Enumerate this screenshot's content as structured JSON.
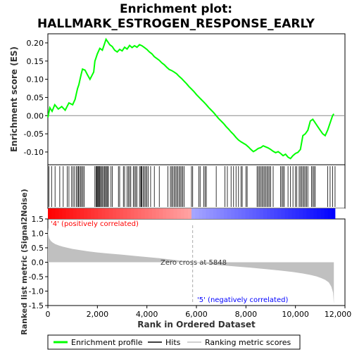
{
  "chart_data": {
    "type": "line",
    "title_line1": "Enrichment plot:",
    "title_line2": "HALLMARK_ESTROGEN_RESPONSE_EARLY",
    "top_panel": {
      "ylabel": "Enrichment score (ES)",
      "ylim": [
        -0.135,
        0.225
      ],
      "yticks": [
        "0.20",
        "0.15",
        "0.10",
        "0.05",
        "0.00",
        "-0.05",
        "-0.10"
      ],
      "ytick_values": [
        0.2,
        0.15,
        0.1,
        0.05,
        0.0,
        -0.05,
        -0.1
      ],
      "line_color": "#00ff00",
      "series": [
        {
          "x": [
            0,
            80,
            170,
            280,
            420,
            560,
            700,
            850,
            1000,
            1100,
            1150,
            1200,
            1250,
            1300,
            1350,
            1400,
            1500,
            1600,
            1700,
            1850,
            1900,
            1950,
            2000,
            2100,
            2200,
            2300,
            2350,
            2400,
            2500,
            2600,
            2700,
            2800,
            2900,
            3000,
            3100,
            3200,
            3300,
            3400,
            3500,
            3600,
            3700,
            3800,
            3900,
            4000,
            4100,
            4200,
            4300,
            4400,
            4500,
            4600,
            4700,
            4800,
            4900,
            5000,
            5100,
            5200,
            5300,
            5400,
            5500,
            5600,
            5700,
            5800,
            5900,
            6000,
            6100,
            6200,
            6300,
            6400,
            6500,
            6600,
            6700,
            6800,
            6900,
            7000,
            7100,
            7200,
            7300,
            7400,
            7500,
            7600,
            7700,
            7800,
            7900,
            8000,
            8100,
            8200,
            8300,
            8400,
            8500,
            8600,
            8700,
            8800,
            8900,
            9000,
            9100,
            9200,
            9300,
            9400,
            9500,
            9600,
            9700,
            9800,
            9900,
            10000,
            10100,
            10200,
            10300,
            10400,
            10500,
            10600,
            10700,
            10800,
            10900,
            11000,
            11100,
            11200,
            11300,
            11400,
            11500,
            11550
          ],
          "y": [
            -0.005,
            0.022,
            0.012,
            0.03,
            0.018,
            0.025,
            0.015,
            0.035,
            0.03,
            0.045,
            0.06,
            0.075,
            0.085,
            0.1,
            0.115,
            0.128,
            0.125,
            0.112,
            0.1,
            0.12,
            0.15,
            0.16,
            0.17,
            0.185,
            0.18,
            0.2,
            0.21,
            0.205,
            0.195,
            0.19,
            0.18,
            0.175,
            0.182,
            0.178,
            0.188,
            0.183,
            0.193,
            0.187,
            0.192,
            0.188,
            0.195,
            0.192,
            0.187,
            0.182,
            0.175,
            0.17,
            0.162,
            0.157,
            0.152,
            0.145,
            0.14,
            0.133,
            0.127,
            0.124,
            0.12,
            0.115,
            0.108,
            0.102,
            0.095,
            0.088,
            0.08,
            0.073,
            0.066,
            0.058,
            0.051,
            0.044,
            0.037,
            0.03,
            0.022,
            0.015,
            0.008,
            0.0,
            -0.008,
            -0.015,
            -0.022,
            -0.03,
            -0.037,
            -0.045,
            -0.052,
            -0.06,
            -0.067,
            -0.072,
            -0.076,
            -0.08,
            -0.086,
            -0.093,
            -0.099,
            -0.095,
            -0.09,
            -0.088,
            -0.083,
            -0.086,
            -0.089,
            -0.093,
            -0.098,
            -0.102,
            -0.099,
            -0.104,
            -0.11,
            -0.106,
            -0.114,
            -0.118,
            -0.11,
            -0.104,
            -0.101,
            -0.093,
            -0.055,
            -0.05,
            -0.04,
            -0.015,
            -0.01,
            -0.02,
            -0.03,
            -0.04,
            -0.05,
            -0.055,
            -0.04,
            -0.02,
            0.0,
            0.005
          ]
        }
      ]
    },
    "middle_panel": {
      "name": "Hits",
      "hit_positions": [
        40,
        150,
        290,
        480,
        620,
        780,
        850,
        960,
        1020,
        1080,
        1150,
        1200,
        1240,
        1280,
        1330,
        1370,
        1420,
        1470,
        1900,
        1950,
        1980,
        2010,
        2040,
        2070,
        2100,
        2130,
        2180,
        2210,
        2260,
        2300,
        2330,
        2380,
        2410,
        2450,
        2550,
        2600,
        2850,
        2900,
        3050,
        3100,
        3200,
        3250,
        3300,
        3350,
        3450,
        3500,
        3550,
        3600,
        3700,
        3750,
        3780,
        3800,
        3850,
        3900,
        3950,
        4000,
        4050,
        4150,
        4300,
        4500,
        4850,
        4950,
        5000,
        5050,
        5100,
        5150,
        5200,
        5250,
        5300,
        5350,
        5400,
        5450,
        5500,
        5800,
        5850,
        6100,
        6150,
        6300,
        6350,
        6400,
        6800,
        7150,
        7250,
        7400,
        7500,
        7600,
        7700,
        7800,
        7850,
        8000,
        8050,
        8450,
        8500,
        8550,
        8600,
        8650,
        8700,
        8750,
        8800,
        8850,
        8900,
        8950,
        9000,
        9100,
        9400,
        9450,
        9500,
        9550,
        9700,
        9800,
        9900,
        10000,
        10050,
        10150,
        10200,
        10250,
        10300,
        10350,
        10400,
        10450,
        10500,
        10650,
        10700,
        10750,
        10800,
        11300,
        11400,
        11500,
        11600
      ]
    },
    "heat_bar": {
      "label_pos": "'4' (positively correlated)",
      "label_neg": "'5' (negatively correlated)",
      "pos_color": "#ff0000",
      "neg_color": "#0000ff"
    },
    "bottom_panel": {
      "ylabel": "Ranked list metric (Signal2Noise)",
      "ylim": [
        -1.5,
        1.5
      ],
      "yticks": [
        "1.5",
        "1.0",
        "0.5",
        "0.0",
        "-0.5",
        "-1.0",
        "-1.5"
      ],
      "ytick_values": [
        1.5,
        1.0,
        0.5,
        0.0,
        -0.5,
        -1.0,
        -1.5
      ],
      "fill_color": "#c0c0c0",
      "series": [
        {
          "x": [
            0,
            20,
            60,
            120,
            200,
            300,
            450,
            600,
            800,
            1000,
            1300,
            1600,
            2000,
            2500,
            3000,
            3500,
            4000,
            4500,
            5000,
            5500,
            5848,
            6200,
            6800,
            7500,
            8200,
            8800,
            9400,
            9900,
            10300,
            10600,
            10850,
            11050,
            11200,
            11350,
            11450,
            11520,
            11550
          ],
          "y": [
            1.2,
            0.95,
            0.82,
            0.74,
            0.68,
            0.63,
            0.58,
            0.54,
            0.5,
            0.46,
            0.42,
            0.38,
            0.34,
            0.3,
            0.26,
            0.22,
            0.18,
            0.14,
            0.09,
            0.04,
            0.0,
            -0.04,
            -0.09,
            -0.14,
            -0.19,
            -0.24,
            -0.29,
            -0.34,
            -0.39,
            -0.44,
            -0.49,
            -0.55,
            -0.61,
            -0.7,
            -0.85,
            -1.05,
            -1.45
          ]
        }
      ],
      "zero_cross_label": "Zero cross at 5848",
      "zero_cross": 5848
    },
    "x_axis": {
      "xlabel": "Rank in Ordered Dataset",
      "xlim": [
        0,
        12000
      ],
      "xticks": [
        "0",
        "2,000",
        "4,000",
        "6,000",
        "8,000",
        "10,000",
        "12,000"
      ],
      "xtick_values": [
        0,
        2000,
        4000,
        6000,
        8000,
        10000,
        12000
      ],
      "n_genes": 11600
    },
    "legend": [
      {
        "label": "Enrichment profile",
        "color": "#00ff00"
      },
      {
        "label": "Hits",
        "color": "#000000"
      },
      {
        "label": "Ranking metric scores",
        "color": "#c0c0c0"
      }
    ]
  }
}
